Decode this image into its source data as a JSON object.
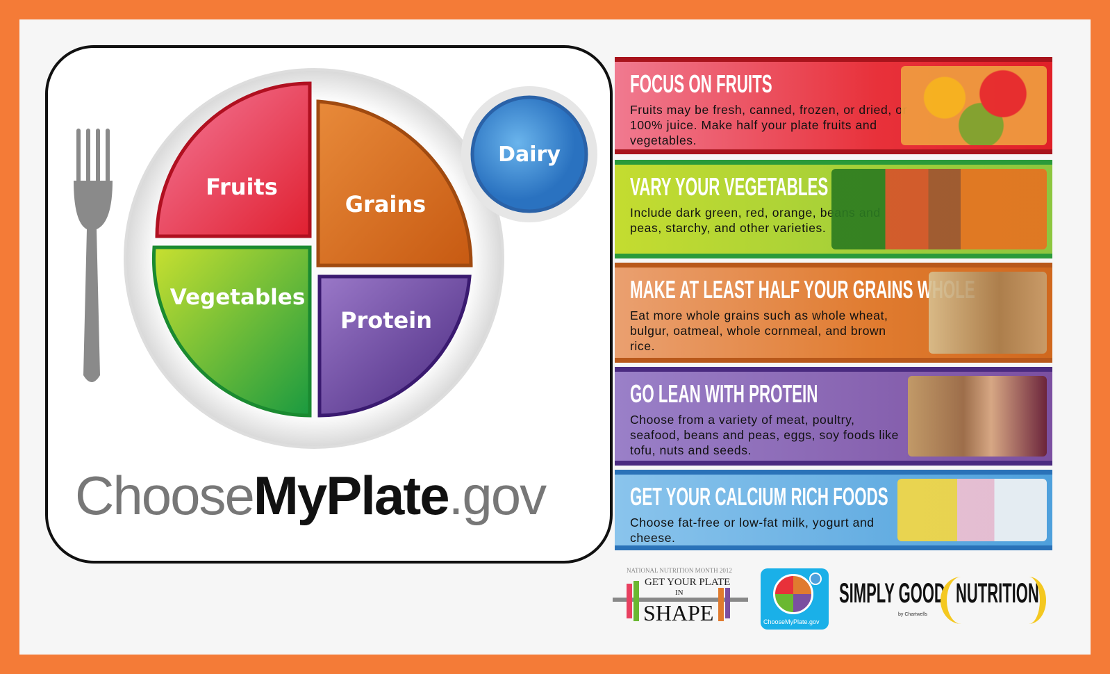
{
  "plate": {
    "fruits": "Fruits",
    "grains": "Grains",
    "vegetables": "Vegetables",
    "protein": "Protein",
    "dairy": "Dairy"
  },
  "brand": {
    "part1": "Choose",
    "part2": "MyPlate",
    "part3": ".gov"
  },
  "banners": [
    {
      "title": "FOCUS ON FRUITS",
      "text": "Fruits may be fresh, canned, frozen, or dried, or 100% juice.  Make half your plate fruits and vegetables.",
      "color": "#e8313a"
    },
    {
      "title": "VARY YOUR VEGETABLES",
      "text": "Include dark green, red, orange, beans and peas, starchy, and other varieties.",
      "color": "#8cc63f"
    },
    {
      "title": "MAKE AT LEAST HALF YOUR GRAINS WHOLE",
      "text": "Eat more whole grains such as whole wheat, bulgur, oatmeal, whole cornmeal, and brown rice.",
      "color": "#e07b2f"
    },
    {
      "title": "GO LEAN WITH PROTEIN",
      "text": "Choose from a variety of meat, poultry, seafood, beans and peas, eggs, soy foods like tofu, nuts and seeds.",
      "color": "#7b4fa0"
    },
    {
      "title": "GET YOUR CALCIUM RICH FOODS",
      "text": "Choose fat-free or low-fat milk, yogurt and cheese.",
      "color": "#4ea0dc"
    }
  ],
  "logos": {
    "nnm_top": "NATIONAL NUTRITION MONTH 2012",
    "nnm_main": "GET YOUR PLATE",
    "nnm_in": "IN",
    "nnm_shape": "SHAPE",
    "myplate_small": "ChooseMyPlate.gov",
    "sgn_simply": "SIMPLY GOOD",
    "sgn_by": "by Chartwells",
    "sgn_nutrition": "NUTRITION"
  }
}
